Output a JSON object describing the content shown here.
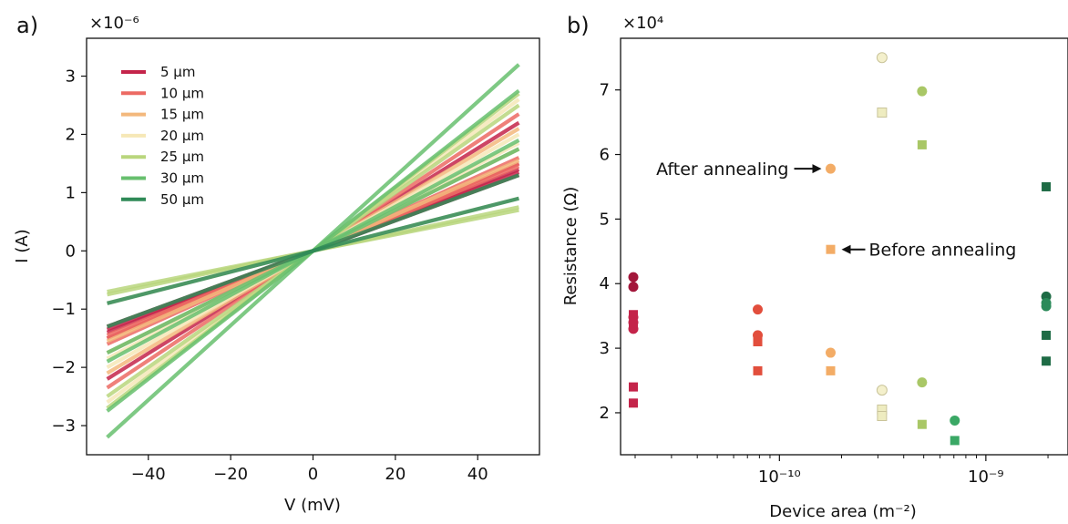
{
  "chart_data": [
    {
      "type": "line",
      "panel_label": "a)",
      "xlabel": "V (mV)",
      "ylabel": "I (A)",
      "y_multiplier": "×10⁻⁶",
      "xlim": [
        -55,
        55
      ],
      "ylim": [
        -3.5,
        3.65
      ],
      "xticks": [
        -40,
        -20,
        0,
        20,
        40
      ],
      "yticks": [
        -3,
        -2,
        -1,
        0,
        1,
        2,
        3
      ],
      "grid": false,
      "legend_position": "upper-left",
      "x": [
        -50,
        50
      ],
      "colors": {
        "5": "#c4244a",
        "10": "#ec6a63",
        "15": "#f3b87c",
        "20": "#f6e8b7",
        "25": "#b9d67d",
        "30": "#67bf6e",
        "50": "#2f8a57"
      },
      "series": [
        {
          "name": "5 μm",
          "color": "#c4244a",
          "slopes": [
            2.2,
            1.5,
            1.4,
            1.35,
            1.3
          ]
        },
        {
          "name": "10 μm",
          "color": "#ec6a63",
          "slopes": [
            2.35,
            1.6,
            1.5,
            1.45
          ]
        },
        {
          "name": "15 μm",
          "color": "#f3b87c",
          "slopes": [
            2.1,
            1.75,
            1.55
          ]
        },
        {
          "name": "20 μm",
          "color": "#f6e8b7",
          "slopes": [
            2.6,
            2.0,
            1.85,
            0.9
          ]
        },
        {
          "name": "25 μm",
          "color": "#b9d67d",
          "slopes": [
            2.7,
            2.5,
            0.75,
            0.7
          ]
        },
        {
          "name": "30 μm",
          "color": "#67bf6e",
          "slopes": [
            3.2,
            2.75,
            1.9,
            1.75
          ]
        },
        {
          "name": "50 μm",
          "color": "#2f8a57",
          "slopes": [
            1.3,
            0.9
          ]
        }
      ]
    },
    {
      "type": "scatter",
      "panel_label": "b)",
      "xlabel": "Device area (m⁻²)",
      "ylabel": "Resistance (Ω)",
      "y_multiplier": "×10⁴",
      "xscale": "log",
      "xlim": [
        1.7e-11,
        2.5e-09
      ],
      "ylim": [
        1.35,
        7.8
      ],
      "yticks": [
        2,
        3,
        4,
        5,
        6,
        7
      ],
      "xticks": [
        "10⁻¹⁰",
        "10⁻⁹"
      ],
      "xtick_values": [
        1e-10,
        1e-09
      ],
      "grid": false,
      "points": [
        {
          "x": 1.96e-11,
          "y": 4.1,
          "m": "circle",
          "c": "#a3173b"
        },
        {
          "x": 1.96e-11,
          "y": 3.95,
          "m": "circle",
          "c": "#a3173b"
        },
        {
          "x": 1.96e-11,
          "y": 3.48,
          "m": "circle",
          "c": "#c4244a"
        },
        {
          "x": 1.96e-11,
          "y": 3.4,
          "m": "circle",
          "c": "#c4244a"
        },
        {
          "x": 1.96e-11,
          "y": 3.3,
          "m": "circle",
          "c": "#c4244a"
        },
        {
          "x": 1.96e-11,
          "y": 3.52,
          "m": "square",
          "c": "#c4244a"
        },
        {
          "x": 1.96e-11,
          "y": 3.35,
          "m": "square",
          "c": "#c4244a"
        },
        {
          "x": 1.96e-11,
          "y": 2.4,
          "m": "square",
          "c": "#c4244a"
        },
        {
          "x": 1.96e-11,
          "y": 2.15,
          "m": "square",
          "c": "#c4244a"
        },
        {
          "x": 7.85e-11,
          "y": 3.6,
          "m": "circle",
          "c": "#e24e3c"
        },
        {
          "x": 7.85e-11,
          "y": 3.2,
          "m": "circle",
          "c": "#e24e3c"
        },
        {
          "x": 7.85e-11,
          "y": 3.1,
          "m": "square",
          "c": "#e24e3c"
        },
        {
          "x": 7.85e-11,
          "y": 2.65,
          "m": "square",
          "c": "#e24e3c"
        },
        {
          "x": 1.77e-10,
          "y": 5.78,
          "m": "circle",
          "c": "#f3ac66"
        },
        {
          "x": 1.77e-10,
          "y": 4.53,
          "m": "square",
          "c": "#f3ac66"
        },
        {
          "x": 1.77e-10,
          "y": 2.93,
          "m": "circle",
          "c": "#f3ac66"
        },
        {
          "x": 1.77e-10,
          "y": 2.65,
          "m": "square",
          "c": "#f3ac66"
        },
        {
          "x": 3.14e-10,
          "y": 7.5,
          "m": "circle",
          "c": "#f4f0cc"
        },
        {
          "x": 3.14e-10,
          "y": 6.65,
          "m": "square",
          "c": "#eeecc0"
        },
        {
          "x": 3.14e-10,
          "y": 2.35,
          "m": "circle",
          "c": "#f4f0cc"
        },
        {
          "x": 3.14e-10,
          "y": 2.05,
          "m": "square",
          "c": "#eeecc0"
        },
        {
          "x": 3.14e-10,
          "y": 1.95,
          "m": "square",
          "c": "#eeecc0"
        },
        {
          "x": 4.91e-10,
          "y": 6.98,
          "m": "circle",
          "c": "#a9c766"
        },
        {
          "x": 4.91e-10,
          "y": 6.15,
          "m": "square",
          "c": "#a9c766"
        },
        {
          "x": 4.91e-10,
          "y": 2.47,
          "m": "circle",
          "c": "#a9c766"
        },
        {
          "x": 4.91e-10,
          "y": 1.82,
          "m": "square",
          "c": "#a9c766"
        },
        {
          "x": 7.07e-10,
          "y": 1.88,
          "m": "circle",
          "c": "#3aa865"
        },
        {
          "x": 7.07e-10,
          "y": 1.57,
          "m": "square",
          "c": "#3aa865"
        },
        {
          "x": 1.96e-09,
          "y": 5.5,
          "m": "square",
          "c": "#1e6b45"
        },
        {
          "x": 1.96e-09,
          "y": 3.8,
          "m": "circle",
          "c": "#1e6b45"
        },
        {
          "x": 1.96e-09,
          "y": 3.7,
          "m": "circle",
          "c": "#2a8a59"
        },
        {
          "x": 1.96e-09,
          "y": 3.65,
          "m": "circle",
          "c": "#2a8a59"
        },
        {
          "x": 1.96e-09,
          "y": 3.2,
          "m": "square",
          "c": "#1e6b45"
        },
        {
          "x": 1.96e-09,
          "y": 2.8,
          "m": "square",
          "c": "#1e6b45"
        }
      ],
      "annotations": [
        {
          "text": "After annealing",
          "x": 1.77e-10,
          "y": 5.78,
          "side": "left"
        },
        {
          "text": "Before annealing",
          "x": 1.77e-10,
          "y": 4.53,
          "side": "right"
        }
      ]
    }
  ]
}
